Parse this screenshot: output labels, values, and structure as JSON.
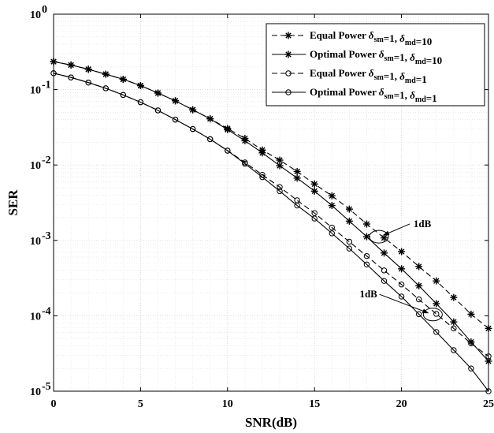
{
  "chart_data": {
    "type": "line",
    "xlabel": "SNR(dB)",
    "ylabel": "SER",
    "xlim": [
      0,
      25
    ],
    "ylim": [
      1e-05,
      1
    ],
    "yscale": "log",
    "grid": true,
    "legend_position": "top-right",
    "x_ticks": [
      "0",
      "5",
      "10",
      "15",
      "20",
      "25"
    ],
    "y_ticks": [
      {
        "base": "10",
        "exp": "0"
      },
      {
        "base": "10",
        "exp": "-1"
      },
      {
        "base": "10",
        "exp": "-2"
      },
      {
        "base": "10",
        "exp": "-3"
      },
      {
        "base": "10",
        "exp": "-4"
      },
      {
        "base": "10",
        "exp": "-5"
      }
    ],
    "x": [
      0,
      1,
      2,
      3,
      4,
      5,
      6,
      7,
      8,
      9,
      10,
      11,
      12,
      13,
      14,
      15,
      16,
      17,
      18,
      19,
      20,
      21,
      22,
      23,
      24,
      25
    ],
    "series": [
      {
        "name": "Equal Power δsm=1, δmd=10",
        "legend": {
          "prefix": "Equal Power ",
          "d1": "δ",
          "s1": "sm",
          "mid": "=1, ",
          "d2": "δ",
          "s2": "md",
          "suffix": "=10"
        },
        "line_style": "dashed",
        "marker": "asterisk",
        "values": [
          0.235,
          0.212,
          0.186,
          0.16,
          0.137,
          0.113,
          0.09,
          0.071,
          0.054,
          0.041,
          0.0305,
          0.0225,
          0.0158,
          0.0116,
          0.0082,
          0.0056,
          0.0039,
          0.0026,
          0.00165,
          0.00108,
          0.00071,
          0.00045,
          0.00029,
          0.000175,
          0.000105,
          6.8e-05
        ]
      },
      {
        "name": "Optimal Power δsm=1, δmd=10",
        "legend": {
          "prefix": "Optimal Power ",
          "d1": "δ",
          "s1": "sm",
          "mid": "=1, ",
          "d2": "δ",
          "s2": "md",
          "suffix": "=10"
        },
        "line_style": "solid",
        "marker": "asterisk",
        "values": [
          0.235,
          0.212,
          0.186,
          0.16,
          0.137,
          0.113,
          0.09,
          0.071,
          0.054,
          0.041,
          0.0295,
          0.021,
          0.0145,
          0.0098,
          0.0067,
          0.0045,
          0.0029,
          0.0018,
          0.00112,
          0.00068,
          0.00042,
          0.00025,
          0.000145,
          8.3e-05,
          4.5e-05,
          2.5e-05
        ]
      },
      {
        "name": "Equal Power δsm=1, δmd=1",
        "legend": {
          "prefix": "Equal Power ",
          "d1": "δ",
          "s1": "sm",
          "mid": "=1, ",
          "d2": "δ",
          "s2": "md",
          "suffix": "=1"
        },
        "line_style": "dashed",
        "marker": "circle",
        "values": [
          0.165,
          0.145,
          0.124,
          0.104,
          0.085,
          0.068,
          0.053,
          0.04,
          0.03,
          0.022,
          0.0155,
          0.0108,
          0.0074,
          0.0051,
          0.0034,
          0.0023,
          0.00148,
          0.00096,
          0.00062,
          0.0004,
          0.00026,
          0.000165,
          0.000106,
          6.8e-05,
          4.3e-05,
          2.9e-05
        ]
      },
      {
        "name": "Optimal Power δsm=1, δmd=1",
        "legend": {
          "prefix": "Optimal Power ",
          "d1": "δ",
          "s1": "sm",
          "mid": "=1, ",
          "d2": "δ",
          "s2": "md",
          "suffix": "=1"
        },
        "line_style": "solid",
        "marker": "circle",
        "values": [
          0.165,
          0.145,
          0.124,
          0.104,
          0.085,
          0.068,
          0.053,
          0.04,
          0.03,
          0.022,
          0.0155,
          0.0104,
          0.0069,
          0.0045,
          0.0029,
          0.00195,
          0.00124,
          0.00078,
          0.00048,
          0.00029,
          0.00018,
          0.000105,
          6.1e-05,
          3.5e-05,
          2e-05,
          1e-05
        ]
      }
    ],
    "annotations": [
      {
        "text": "1dB",
        "ellipse_at": [
          18.7,
          0.00112
        ],
        "text_at": [
          21.2,
          0.0015
        ]
      },
      {
        "text": "1dB",
        "ellipse_at": [
          21.8,
          0.000104
        ],
        "text_at": [
          18.1,
          0.000175
        ]
      }
    ]
  }
}
